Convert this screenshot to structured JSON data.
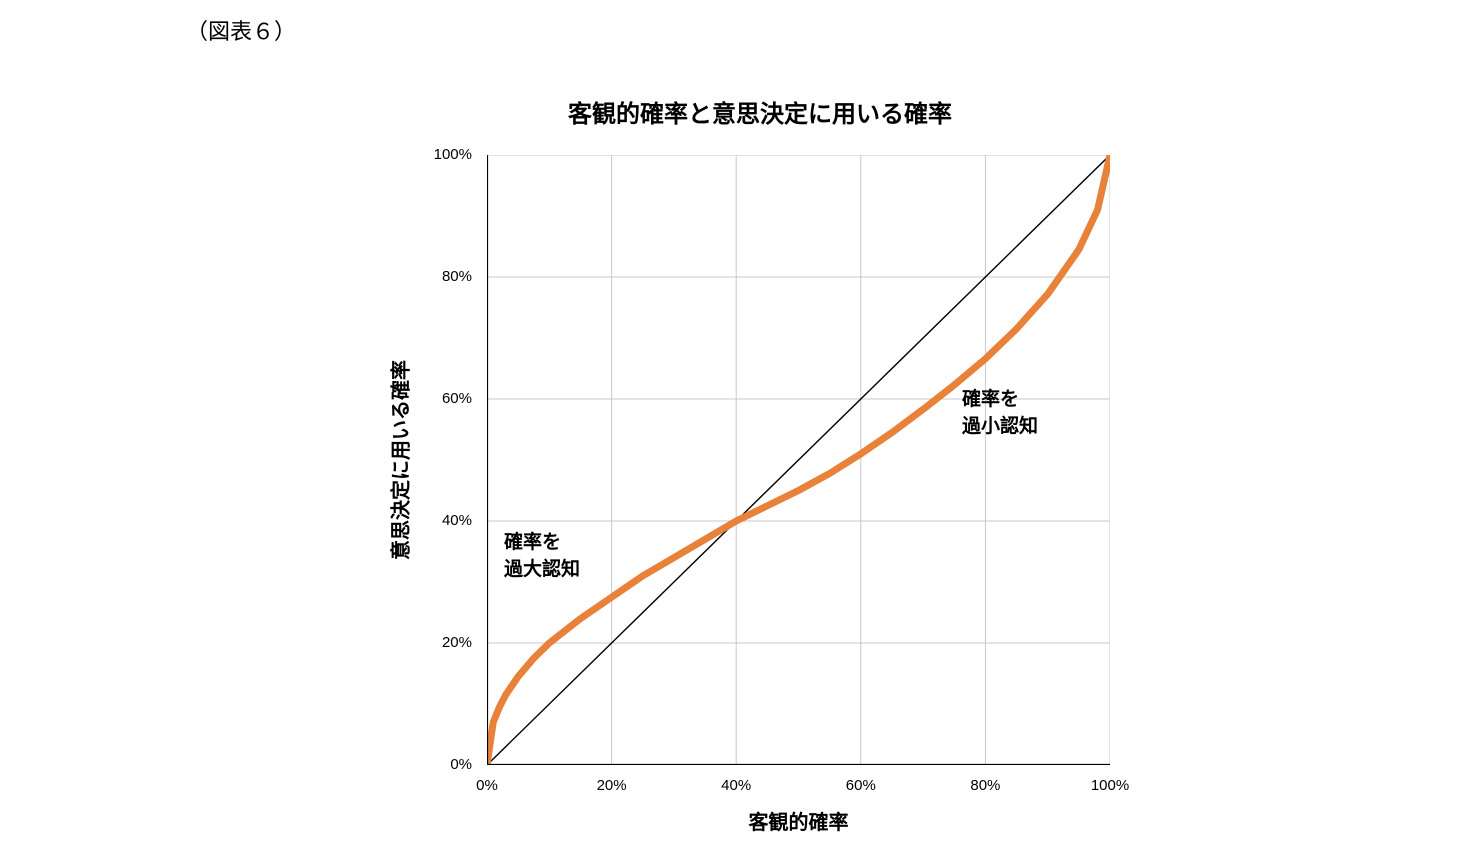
{
  "meta": {
    "figure_label": "（図表６）"
  },
  "chart": {
    "title": "客観的確率と意思決定に用いる確率",
    "xlabel": "客観的確率",
    "ylabel": "意思決定に用いる確率",
    "x_ticks": [
      "0%",
      "20%",
      "40%",
      "60%",
      "80%",
      "100%"
    ],
    "y_ticks": [
      "0%",
      "20%",
      "40%",
      "60%",
      "80%",
      "100%"
    ]
  },
  "chart_data": {
    "type": "line",
    "title": "客観的確率と意思決定に用いる確率",
    "xlabel": "客観的確率",
    "ylabel": "意思決定に用いる確率",
    "xlim": [
      0,
      100
    ],
    "ylim": [
      0,
      100
    ],
    "x_tick_values": [
      0,
      20,
      40,
      60,
      80,
      100
    ],
    "y_tick_values": [
      0,
      20,
      40,
      60,
      80,
      100
    ],
    "grid": true,
    "grid_color": "#c8c8c8",
    "axis_color": "#000000",
    "legend": "none",
    "series": [
      {
        "id": "diagonal-reference-line",
        "color": "#000000",
        "width": 1.4,
        "x": [
          0,
          100
        ],
        "y": [
          0,
          100
        ]
      },
      {
        "id": "probability-weighting-curve",
        "color": "#E8813A",
        "width": 7,
        "x": [
          0,
          1,
          2,
          3,
          5,
          7.5,
          10,
          15,
          20,
          25,
          30,
          35,
          40,
          45,
          50,
          55,
          60,
          65,
          70,
          75,
          80,
          85,
          90,
          95,
          98,
          100
        ],
        "y": [
          0,
          7,
          9.5,
          11.5,
          14.5,
          17.5,
          20,
          24,
          27.5,
          31,
          34,
          37,
          40,
          42.5,
          45,
          47.8,
          51,
          54.5,
          58.3,
          62.3,
          66.6,
          71.5,
          77.2,
          84.5,
          91,
          100
        ]
      }
    ],
    "annotations": [
      {
        "text": "確率を\n過大認知",
        "x": 4,
        "y": 37
      },
      {
        "text": "確率を\n過小認知",
        "x": 77,
        "y": 59
      }
    ]
  }
}
